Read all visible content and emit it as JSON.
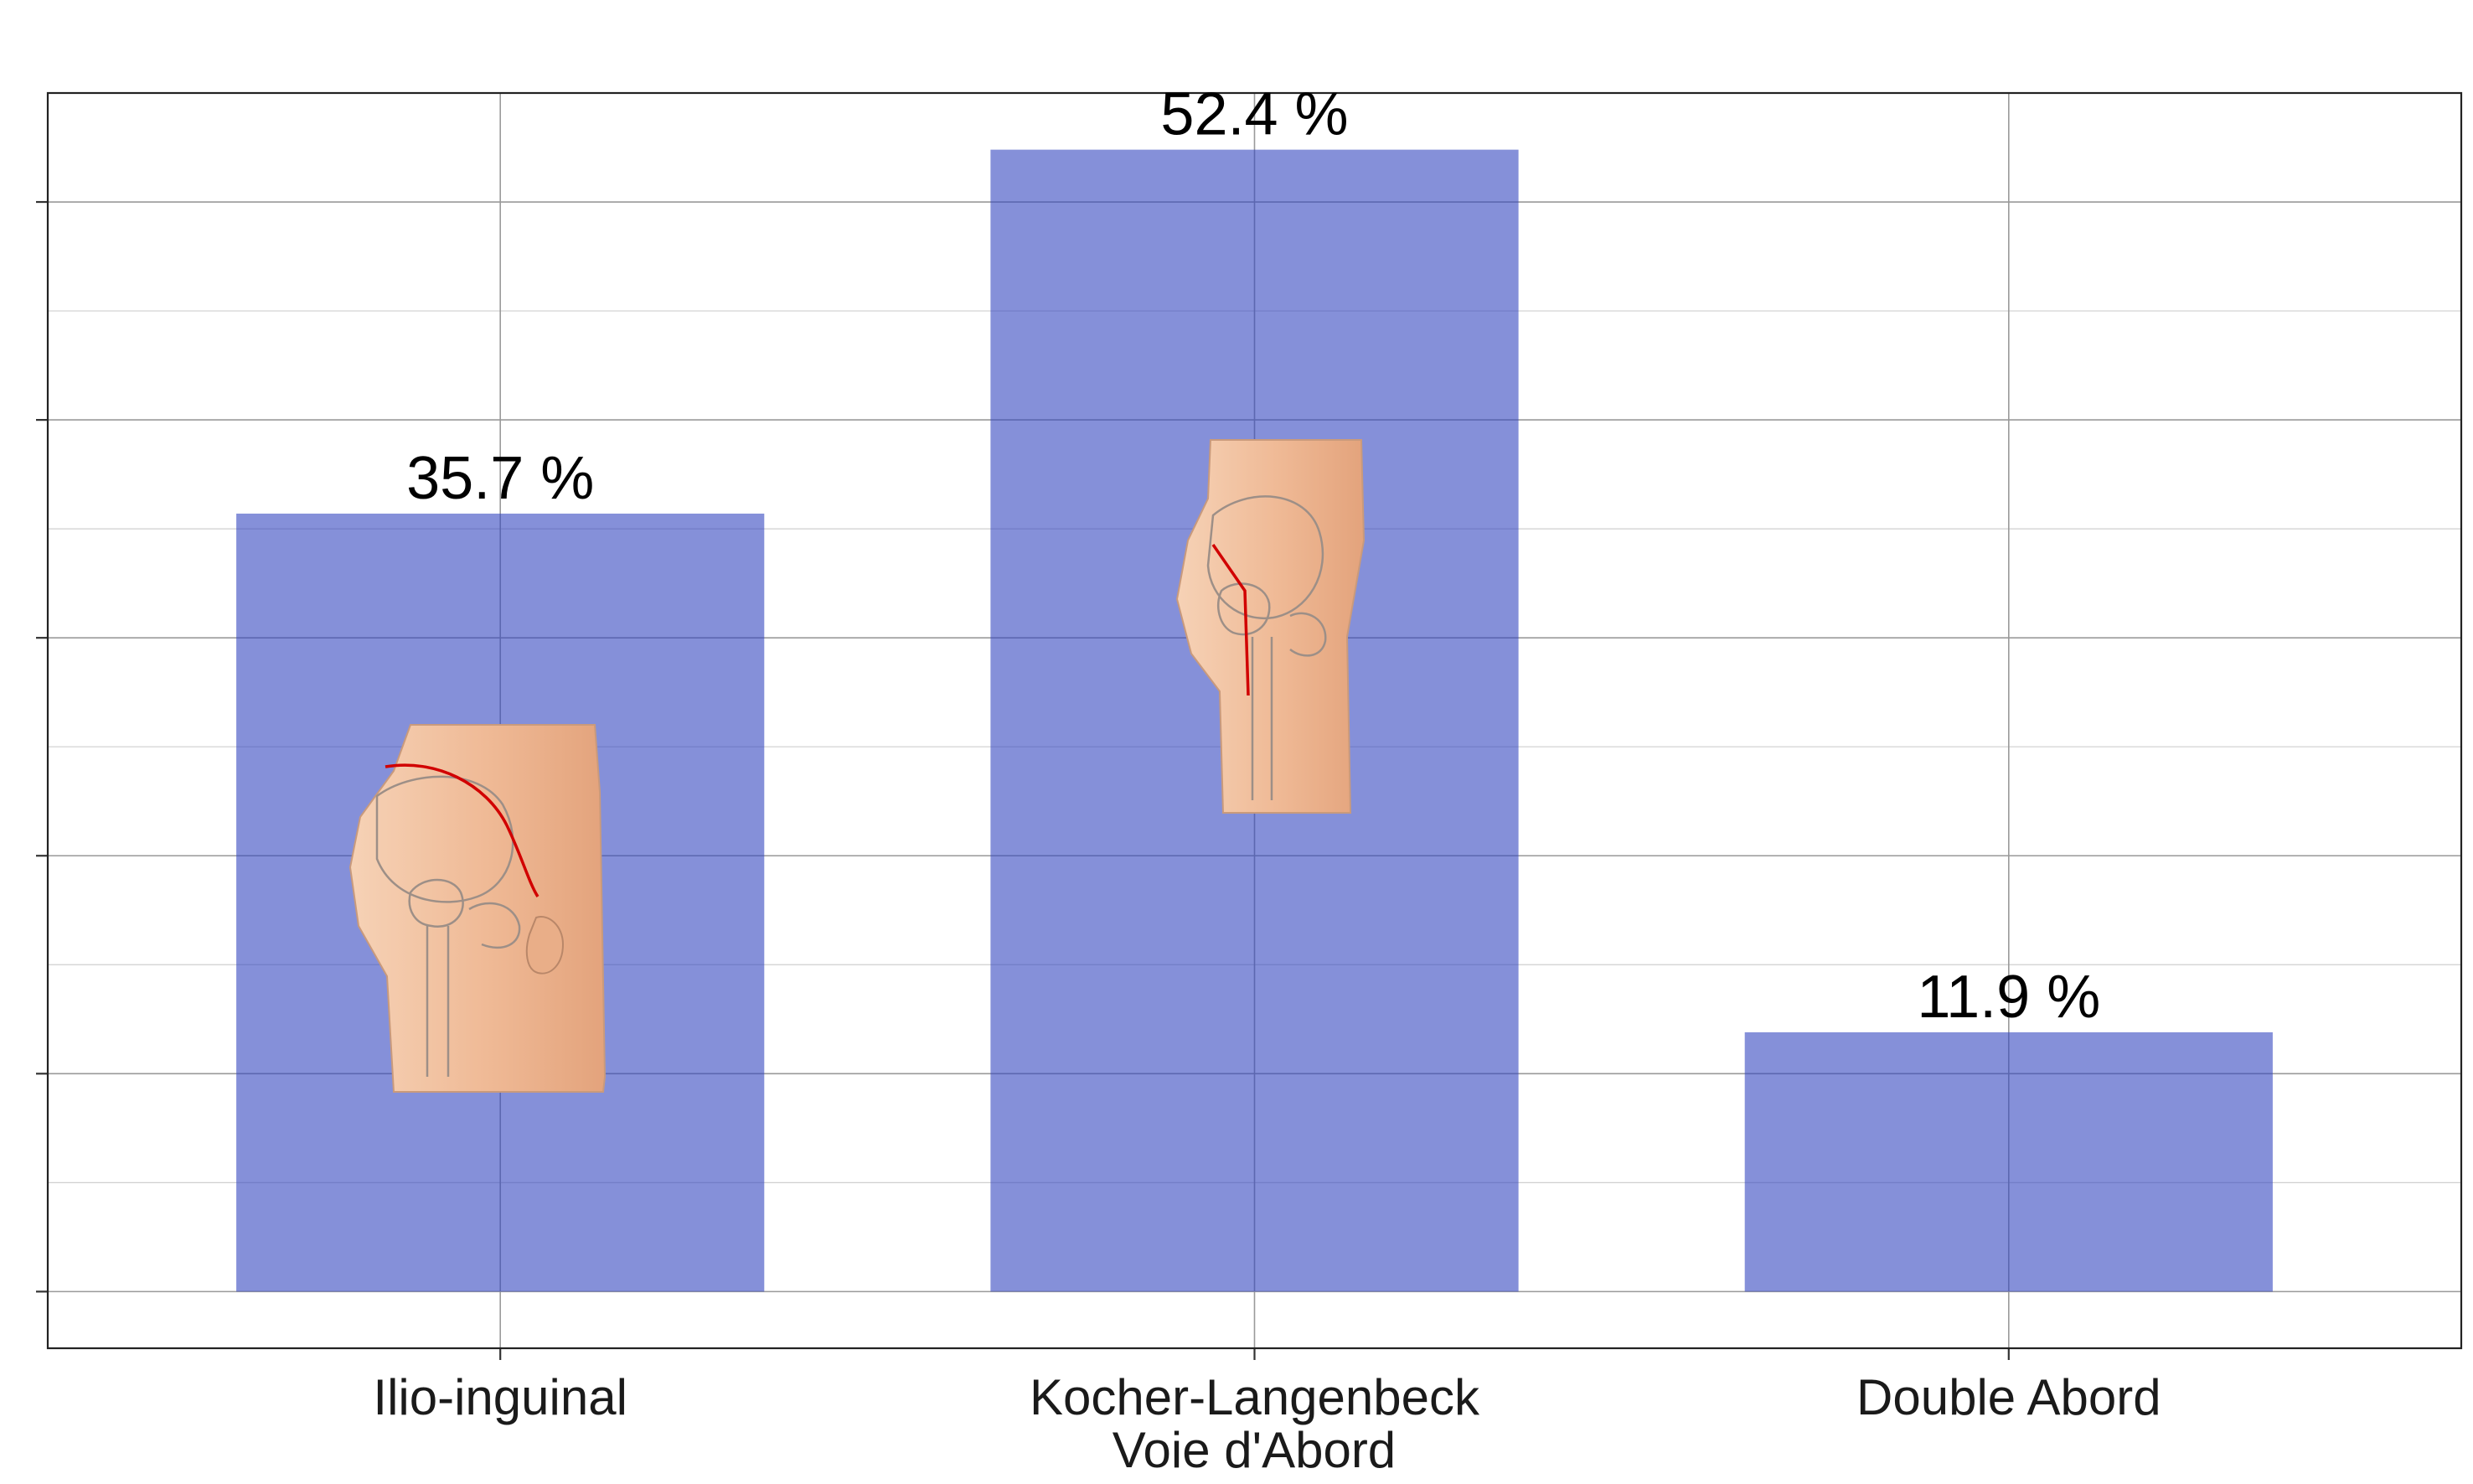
{
  "chart_data": {
    "type": "bar",
    "categories": [
      "Ilio-inguinal",
      "Kocher-Langenbeck",
      "Double Abord"
    ],
    "values": [
      35.7,
      52.4,
      11.9
    ],
    "data_labels": [
      "35.7 %",
      "52.4 %",
      "11.9 %"
    ],
    "xlabel": "Voie d'Abord",
    "ylabel": "",
    "ylim": [
      -2.6,
      55.0
    ],
    "y_major_ticks": [
      0,
      10,
      20,
      30,
      40,
      50
    ],
    "y_tick_labels_shown": false,
    "grid": true,
    "bar_color": "#3346c0",
    "bar_images": [
      "hip-anterior-incision-illustration",
      "hip-posterior-incision-illustration",
      null
    ]
  }
}
